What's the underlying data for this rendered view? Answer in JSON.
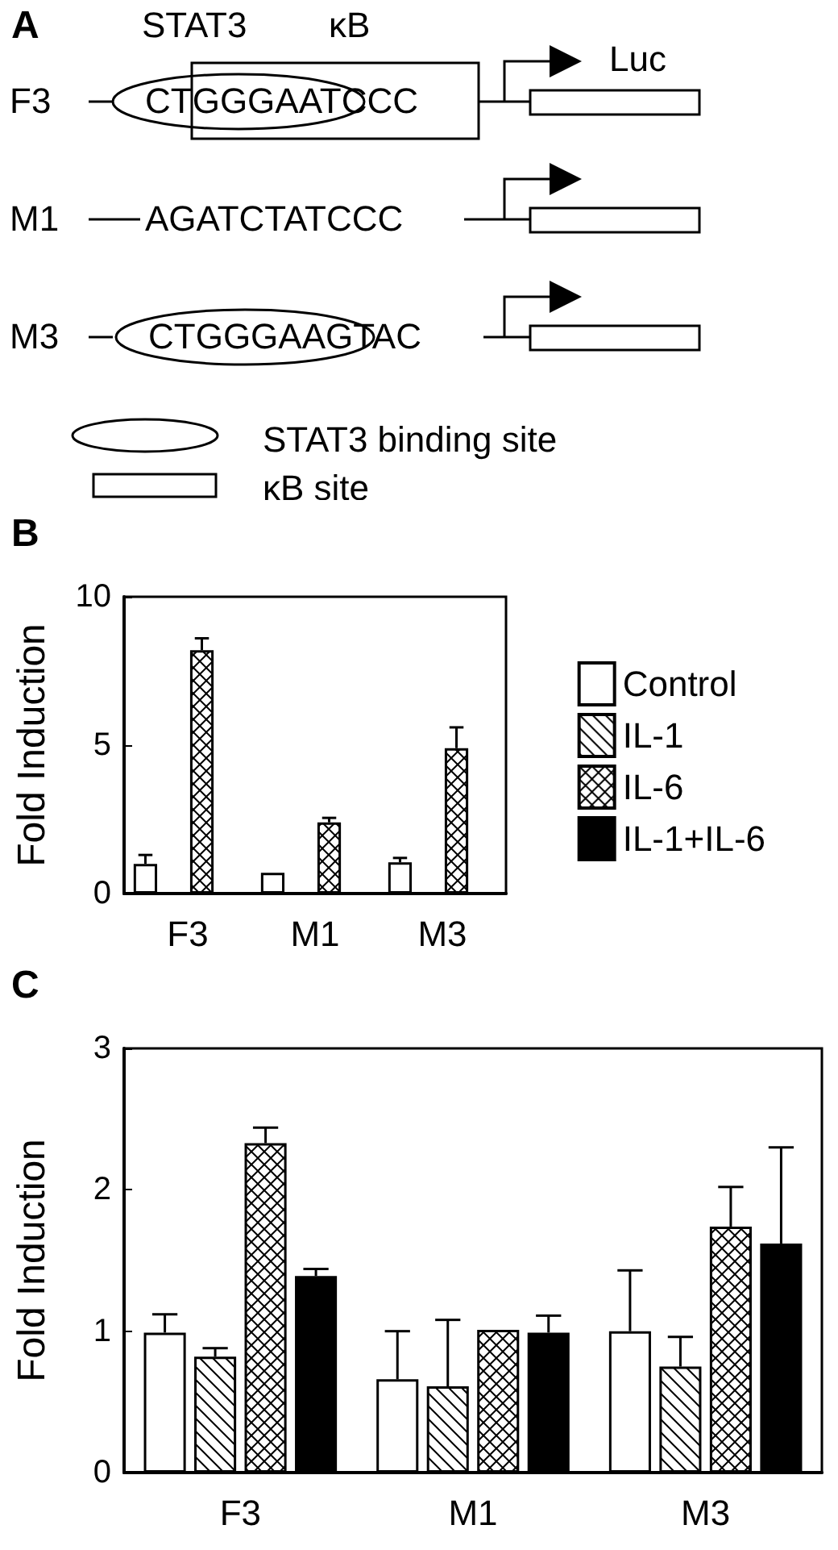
{
  "chart_data": [
    {
      "type": "other",
      "title": "A",
      "annotations": [
        "STAT3",
        "κB",
        "Luc",
        "F3",
        "CTGGGAATCCC",
        "M1",
        "AGATCTATCCC",
        "M3",
        "CTGGGAAGTAC",
        "STAT3 binding site",
        "κB site"
      ]
    },
    {
      "type": "bar",
      "title": "B",
      "ylabel": "Fold Induction",
      "categories": [
        "F3",
        "M1",
        "M3"
      ],
      "ylim": [
        0,
        10
      ],
      "yticks": [
        0,
        5,
        10
      ],
      "grid": false,
      "legend": "right",
      "series": [
        {
          "name": "Control",
          "color": "#ffffff",
          "values": [
            1.0,
            0.7,
            1.05
          ],
          "errors": [
            [
              1.0,
              1.3
            ],
            null,
            [
              1.05,
              1.2
            ]
          ]
        },
        {
          "name": "IL-1",
          "color": "#000000",
          "values": [
            null,
            null,
            null
          ]
        },
        {
          "name": "IL-6",
          "color": "#000000",
          "values": [
            8.2,
            2.4,
            4.9
          ],
          "errors": [
            [
              8.2,
              8.6
            ],
            [
              2.4,
              2.55
            ],
            [
              4.9,
              5.6
            ]
          ]
        },
        {
          "name": "IL-1+IL-6",
          "color": "#000000",
          "values": [
            null,
            null,
            null
          ]
        }
      ]
    },
    {
      "type": "bar",
      "title": "C",
      "ylabel": "Fold Induction",
      "categories": [
        "F3",
        "M1",
        "M3"
      ],
      "ylim": [
        0,
        3
      ],
      "yticks": [
        0,
        1,
        2,
        3
      ],
      "grid": false,
      "series": [
        {
          "color": "#ffffff",
          "values": [
            0.99,
            0.66,
            1.0
          ],
          "errors": [
            [
              0.99,
              1.12
            ],
            [
              0.66,
              1.0
            ],
            [
              1.0,
              1.43
            ]
          ]
        },
        {
          "color": "#000000",
          "values": [
            0.82,
            0.61,
            0.75
          ],
          "errors": [
            [
              0.82,
              0.88
            ],
            [
              0.61,
              1.08
            ],
            [
              0.75,
              0.96
            ]
          ]
        },
        {
          "color": "#000000",
          "values": [
            2.33,
            1.01,
            1.74
          ],
          "errors": [
            [
              2.33,
              2.44
            ],
            null,
            [
              1.74,
              2.02
            ]
          ]
        },
        {
          "color": "#000000",
          "values": [
            1.39,
            0.99,
            1.62
          ],
          "errors": [
            [
              1.39,
              1.44
            ],
            [
              0.99,
              1.11
            ],
            [
              1.62,
              2.3
            ]
          ]
        }
      ]
    }
  ]
}
